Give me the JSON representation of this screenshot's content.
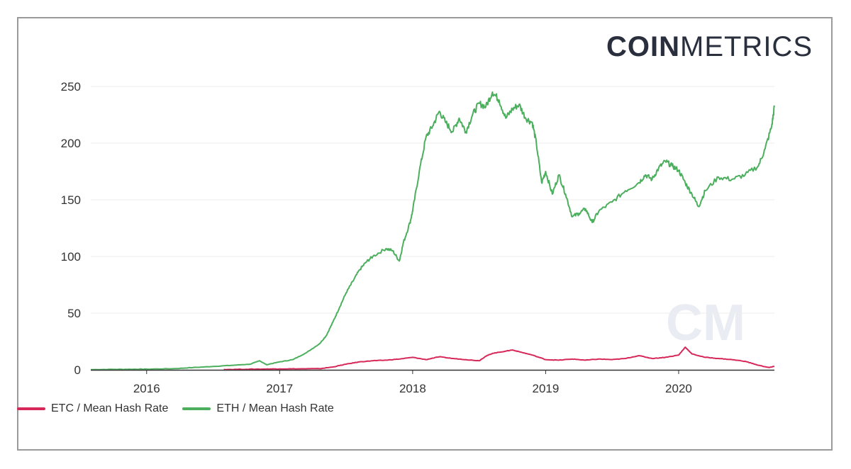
{
  "logo": {
    "bold": "COIN",
    "light": "METRICS"
  },
  "watermark": "CM",
  "colors": {
    "etc": "#d7285a",
    "eth": "#4caf5e",
    "grid": "#eeeeee",
    "axis": "#333333"
  },
  "chart_data": {
    "type": "line",
    "title": "",
    "xlabel": "",
    "ylabel": "",
    "ylim": [
      0,
      250
    ],
    "yticks": [
      "0",
      "50",
      "100",
      "150",
      "200",
      "250"
    ],
    "xticks": [
      "2016",
      "2017",
      "2018",
      "2019",
      "2020"
    ],
    "grid": true,
    "legend_position": "bottom-left",
    "series": [
      {
        "name": "ETC / Mean Hash Rate",
        "color": "#d7285a",
        "points": [
          [
            2016.58,
            0.3
          ],
          [
            2016.75,
            0.5
          ],
          [
            2016.9,
            0.7
          ],
          [
            2017.0,
            0.8
          ],
          [
            2017.15,
            0.9
          ],
          [
            2017.3,
            1.0
          ],
          [
            2017.4,
            2.5
          ],
          [
            2017.5,
            5.0
          ],
          [
            2017.6,
            7.0
          ],
          [
            2017.7,
            8.0
          ],
          [
            2017.8,
            8.5
          ],
          [
            2017.9,
            9.5
          ],
          [
            2018.0,
            11.0
          ],
          [
            2018.1,
            9.0
          ],
          [
            2018.2,
            11.5
          ],
          [
            2018.3,
            10.0
          ],
          [
            2018.4,
            9.0
          ],
          [
            2018.5,
            8.0
          ],
          [
            2018.55,
            12.0
          ],
          [
            2018.6,
            14.5
          ],
          [
            2018.7,
            16.5
          ],
          [
            2018.75,
            17.5
          ],
          [
            2018.8,
            16.0
          ],
          [
            2018.9,
            13.0
          ],
          [
            2019.0,
            9.0
          ],
          [
            2019.1,
            8.5
          ],
          [
            2019.2,
            9.5
          ],
          [
            2019.3,
            8.5
          ],
          [
            2019.4,
            9.5
          ],
          [
            2019.5,
            9.0
          ],
          [
            2019.6,
            10.0
          ],
          [
            2019.7,
            12.5
          ],
          [
            2019.8,
            10.0
          ],
          [
            2019.9,
            11.0
          ],
          [
            2020.0,
            13.0
          ],
          [
            2020.05,
            20.0
          ],
          [
            2020.1,
            14.0
          ],
          [
            2020.2,
            11.0
          ],
          [
            2020.3,
            10.0
          ],
          [
            2020.4,
            9.0
          ],
          [
            2020.5,
            7.5
          ],
          [
            2020.6,
            4.0
          ],
          [
            2020.68,
            2.0
          ],
          [
            2020.72,
            3.0
          ]
        ]
      },
      {
        "name": "ETH / Mean Hash Rate",
        "color": "#4caf5e",
        "points": [
          [
            2015.58,
            0.2
          ],
          [
            2015.75,
            0.4
          ],
          [
            2015.9,
            0.5
          ],
          [
            2016.0,
            0.6
          ],
          [
            2016.2,
            1.0
          ],
          [
            2016.35,
            2.0
          ],
          [
            2016.5,
            3.0
          ],
          [
            2016.65,
            4.0
          ],
          [
            2016.78,
            5.0
          ],
          [
            2016.85,
            8.0
          ],
          [
            2016.9,
            4.5
          ],
          [
            2017.0,
            7.0
          ],
          [
            2017.1,
            9.0
          ],
          [
            2017.2,
            15.0
          ],
          [
            2017.3,
            23.0
          ],
          [
            2017.35,
            30.0
          ],
          [
            2017.4,
            42.0
          ],
          [
            2017.45,
            55.0
          ],
          [
            2017.5,
            68.0
          ],
          [
            2017.55,
            78.0
          ],
          [
            2017.6,
            88.0
          ],
          [
            2017.65,
            95.0
          ],
          [
            2017.7,
            100.0
          ],
          [
            2017.8,
            107.0
          ],
          [
            2017.85,
            105.0
          ],
          [
            2017.9,
            96.0
          ],
          [
            2017.93,
            112.0
          ],
          [
            2017.98,
            130.0
          ],
          [
            2018.0,
            140.0
          ],
          [
            2018.05,
            175.0
          ],
          [
            2018.1,
            205.0
          ],
          [
            2018.15,
            215.0
          ],
          [
            2018.2,
            228.0
          ],
          [
            2018.25,
            218.0
          ],
          [
            2018.3,
            210.0
          ],
          [
            2018.35,
            222.0
          ],
          [
            2018.4,
            210.0
          ],
          [
            2018.45,
            225.0
          ],
          [
            2018.5,
            235.0
          ],
          [
            2018.55,
            232.0
          ],
          [
            2018.6,
            245.0
          ],
          [
            2018.65,
            238.0
          ],
          [
            2018.7,
            222.0
          ],
          [
            2018.75,
            230.0
          ],
          [
            2018.8,
            234.0
          ],
          [
            2018.85,
            222.0
          ],
          [
            2018.9,
            218.0
          ],
          [
            2018.93,
            200.0
          ],
          [
            2018.97,
            165.0
          ],
          [
            2019.0,
            175.0
          ],
          [
            2019.05,
            155.0
          ],
          [
            2019.1,
            172.0
          ],
          [
            2019.15,
            155.0
          ],
          [
            2019.2,
            135.0
          ],
          [
            2019.25,
            138.0
          ],
          [
            2019.3,
            142.0
          ],
          [
            2019.35,
            130.0
          ],
          [
            2019.4,
            140.0
          ],
          [
            2019.5,
            148.0
          ],
          [
            2019.6,
            158.0
          ],
          [
            2019.7,
            165.0
          ],
          [
            2019.75,
            172.0
          ],
          [
            2019.8,
            168.0
          ],
          [
            2019.85,
            178.0
          ],
          [
            2019.9,
            184.0
          ],
          [
            2019.95,
            180.0
          ],
          [
            2020.0,
            176.0
          ],
          [
            2020.05,
            165.0
          ],
          [
            2020.1,
            155.0
          ],
          [
            2020.15,
            144.0
          ],
          [
            2020.2,
            158.0
          ],
          [
            2020.3,
            170.0
          ],
          [
            2020.4,
            168.0
          ],
          [
            2020.5,
            172.0
          ],
          [
            2020.6,
            180.0
          ],
          [
            2020.65,
            195.0
          ],
          [
            2020.7,
            215.0
          ],
          [
            2020.72,
            232.0
          ]
        ]
      }
    ]
  }
}
